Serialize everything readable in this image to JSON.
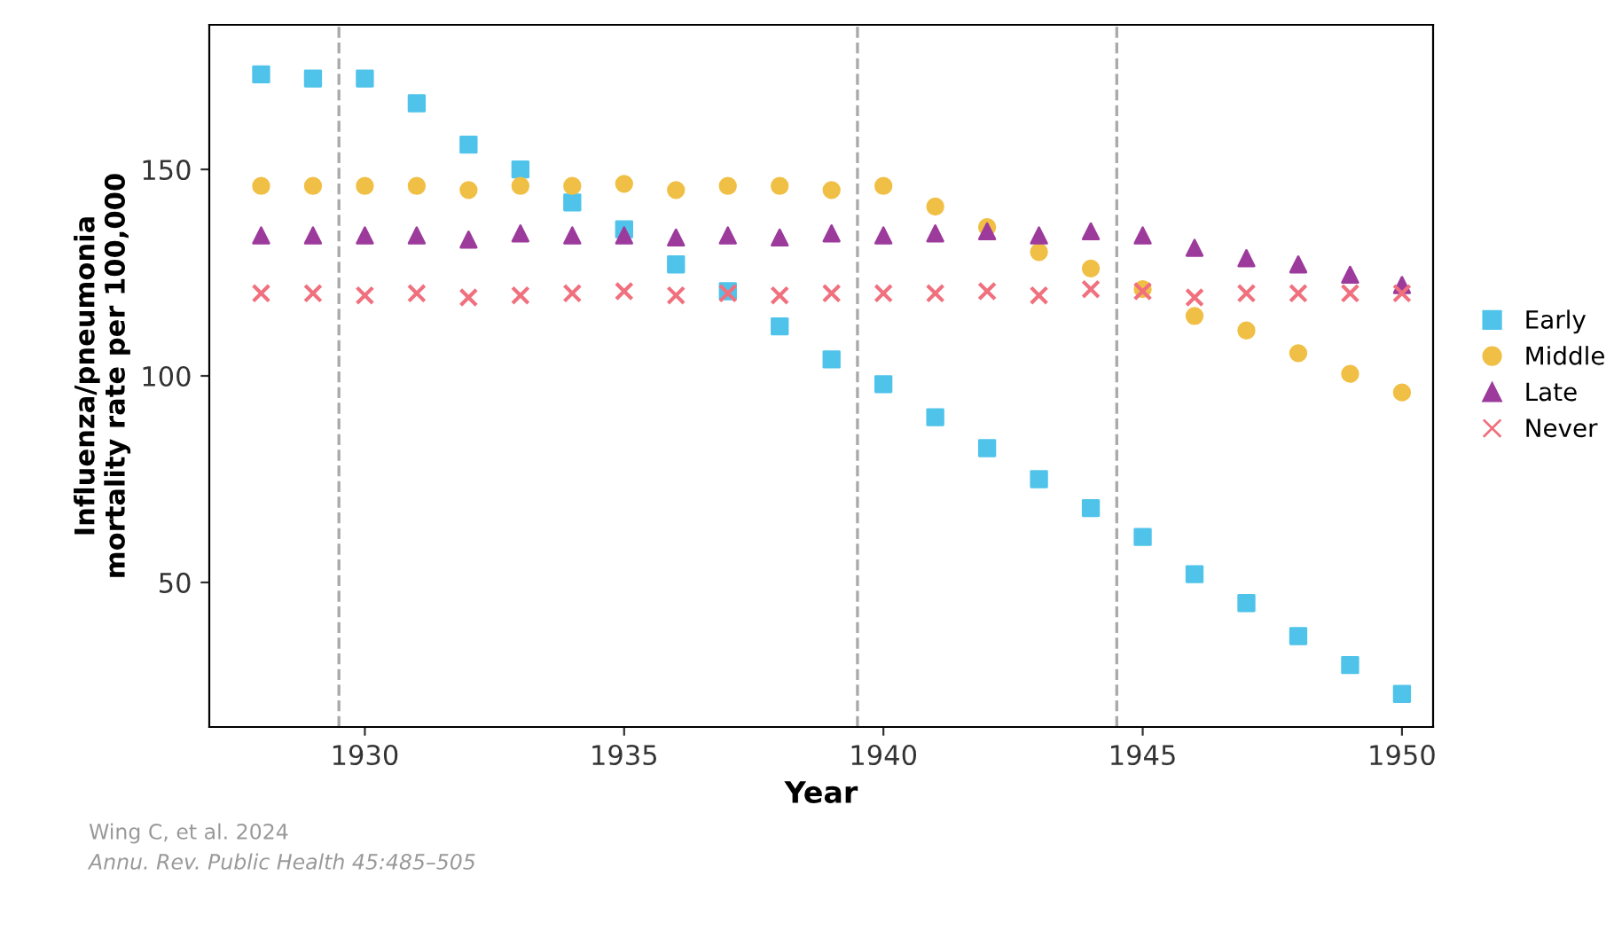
{
  "chart_data": {
    "type": "scatter",
    "xlabel": "Year",
    "ylabel": "Influenza/pneumonia\nmortality rate per 100,000",
    "x": [
      1928,
      1929,
      1930,
      1931,
      1932,
      1933,
      1934,
      1935,
      1936,
      1937,
      1938,
      1939,
      1940,
      1941,
      1942,
      1943,
      1944,
      1945,
      1946,
      1947,
      1948,
      1949,
      1950
    ],
    "series": [
      {
        "name": "Early",
        "color": "#4fc3ea",
        "marker": "square",
        "values": [
          173,
          172,
          172,
          166,
          156,
          150,
          142,
          135.5,
          127,
          120.5,
          112,
          104,
          98,
          90,
          82.5,
          75,
          68,
          61,
          52,
          45,
          37,
          30,
          23
        ]
      },
      {
        "name": "Middle",
        "color": "#f0bf45",
        "marker": "circle",
        "values": [
          146,
          146,
          146,
          146,
          145,
          146,
          146,
          146.5,
          145,
          146,
          146,
          145,
          146,
          141,
          136,
          130,
          126,
          121,
          114.5,
          111,
          105.5,
          100.5,
          96
        ]
      },
      {
        "name": "Late",
        "color": "#9c3b9c",
        "marker": "triangle",
        "values": [
          134,
          134,
          134,
          134,
          133,
          134.5,
          134,
          134,
          133.5,
          134,
          133.5,
          134.5,
          134,
          134.5,
          135,
          134,
          135,
          134,
          131,
          128.5,
          127,
          124.5,
          122
        ]
      },
      {
        "name": "Never",
        "color": "#f0707e",
        "marker": "cross",
        "values": [
          120,
          120,
          119.5,
          120,
          119,
          119.5,
          120,
          120.5,
          119.5,
          120,
          119.5,
          120,
          120,
          120,
          120.5,
          119.5,
          121,
          120.5,
          119,
          120,
          120,
          120,
          120
        ]
      }
    ],
    "xlim": [
      1927,
      1950.6
    ],
    "ylim": [
      15,
      185
    ],
    "xticks": [
      1930,
      1935,
      1940,
      1945,
      1950
    ],
    "yticks": [
      50,
      100,
      150
    ],
    "ref_lines": [
      {
        "axis": "x",
        "value": 1929.5,
        "color": "#aaaaaa",
        "line_style": "dashed"
      },
      {
        "axis": "x",
        "value": 1939.5,
        "color": "#aaaaaa",
        "line_style": "dashed"
      },
      {
        "axis": "x",
        "value": 1944.5,
        "color": "#aaaaaa",
        "line_style": "dashed"
      }
    ],
    "legend": "right",
    "grid": false,
    "annotations": [
      "Wing C, et al. 2024",
      "Annu. Rev. Public Health 45:485–505"
    ]
  }
}
